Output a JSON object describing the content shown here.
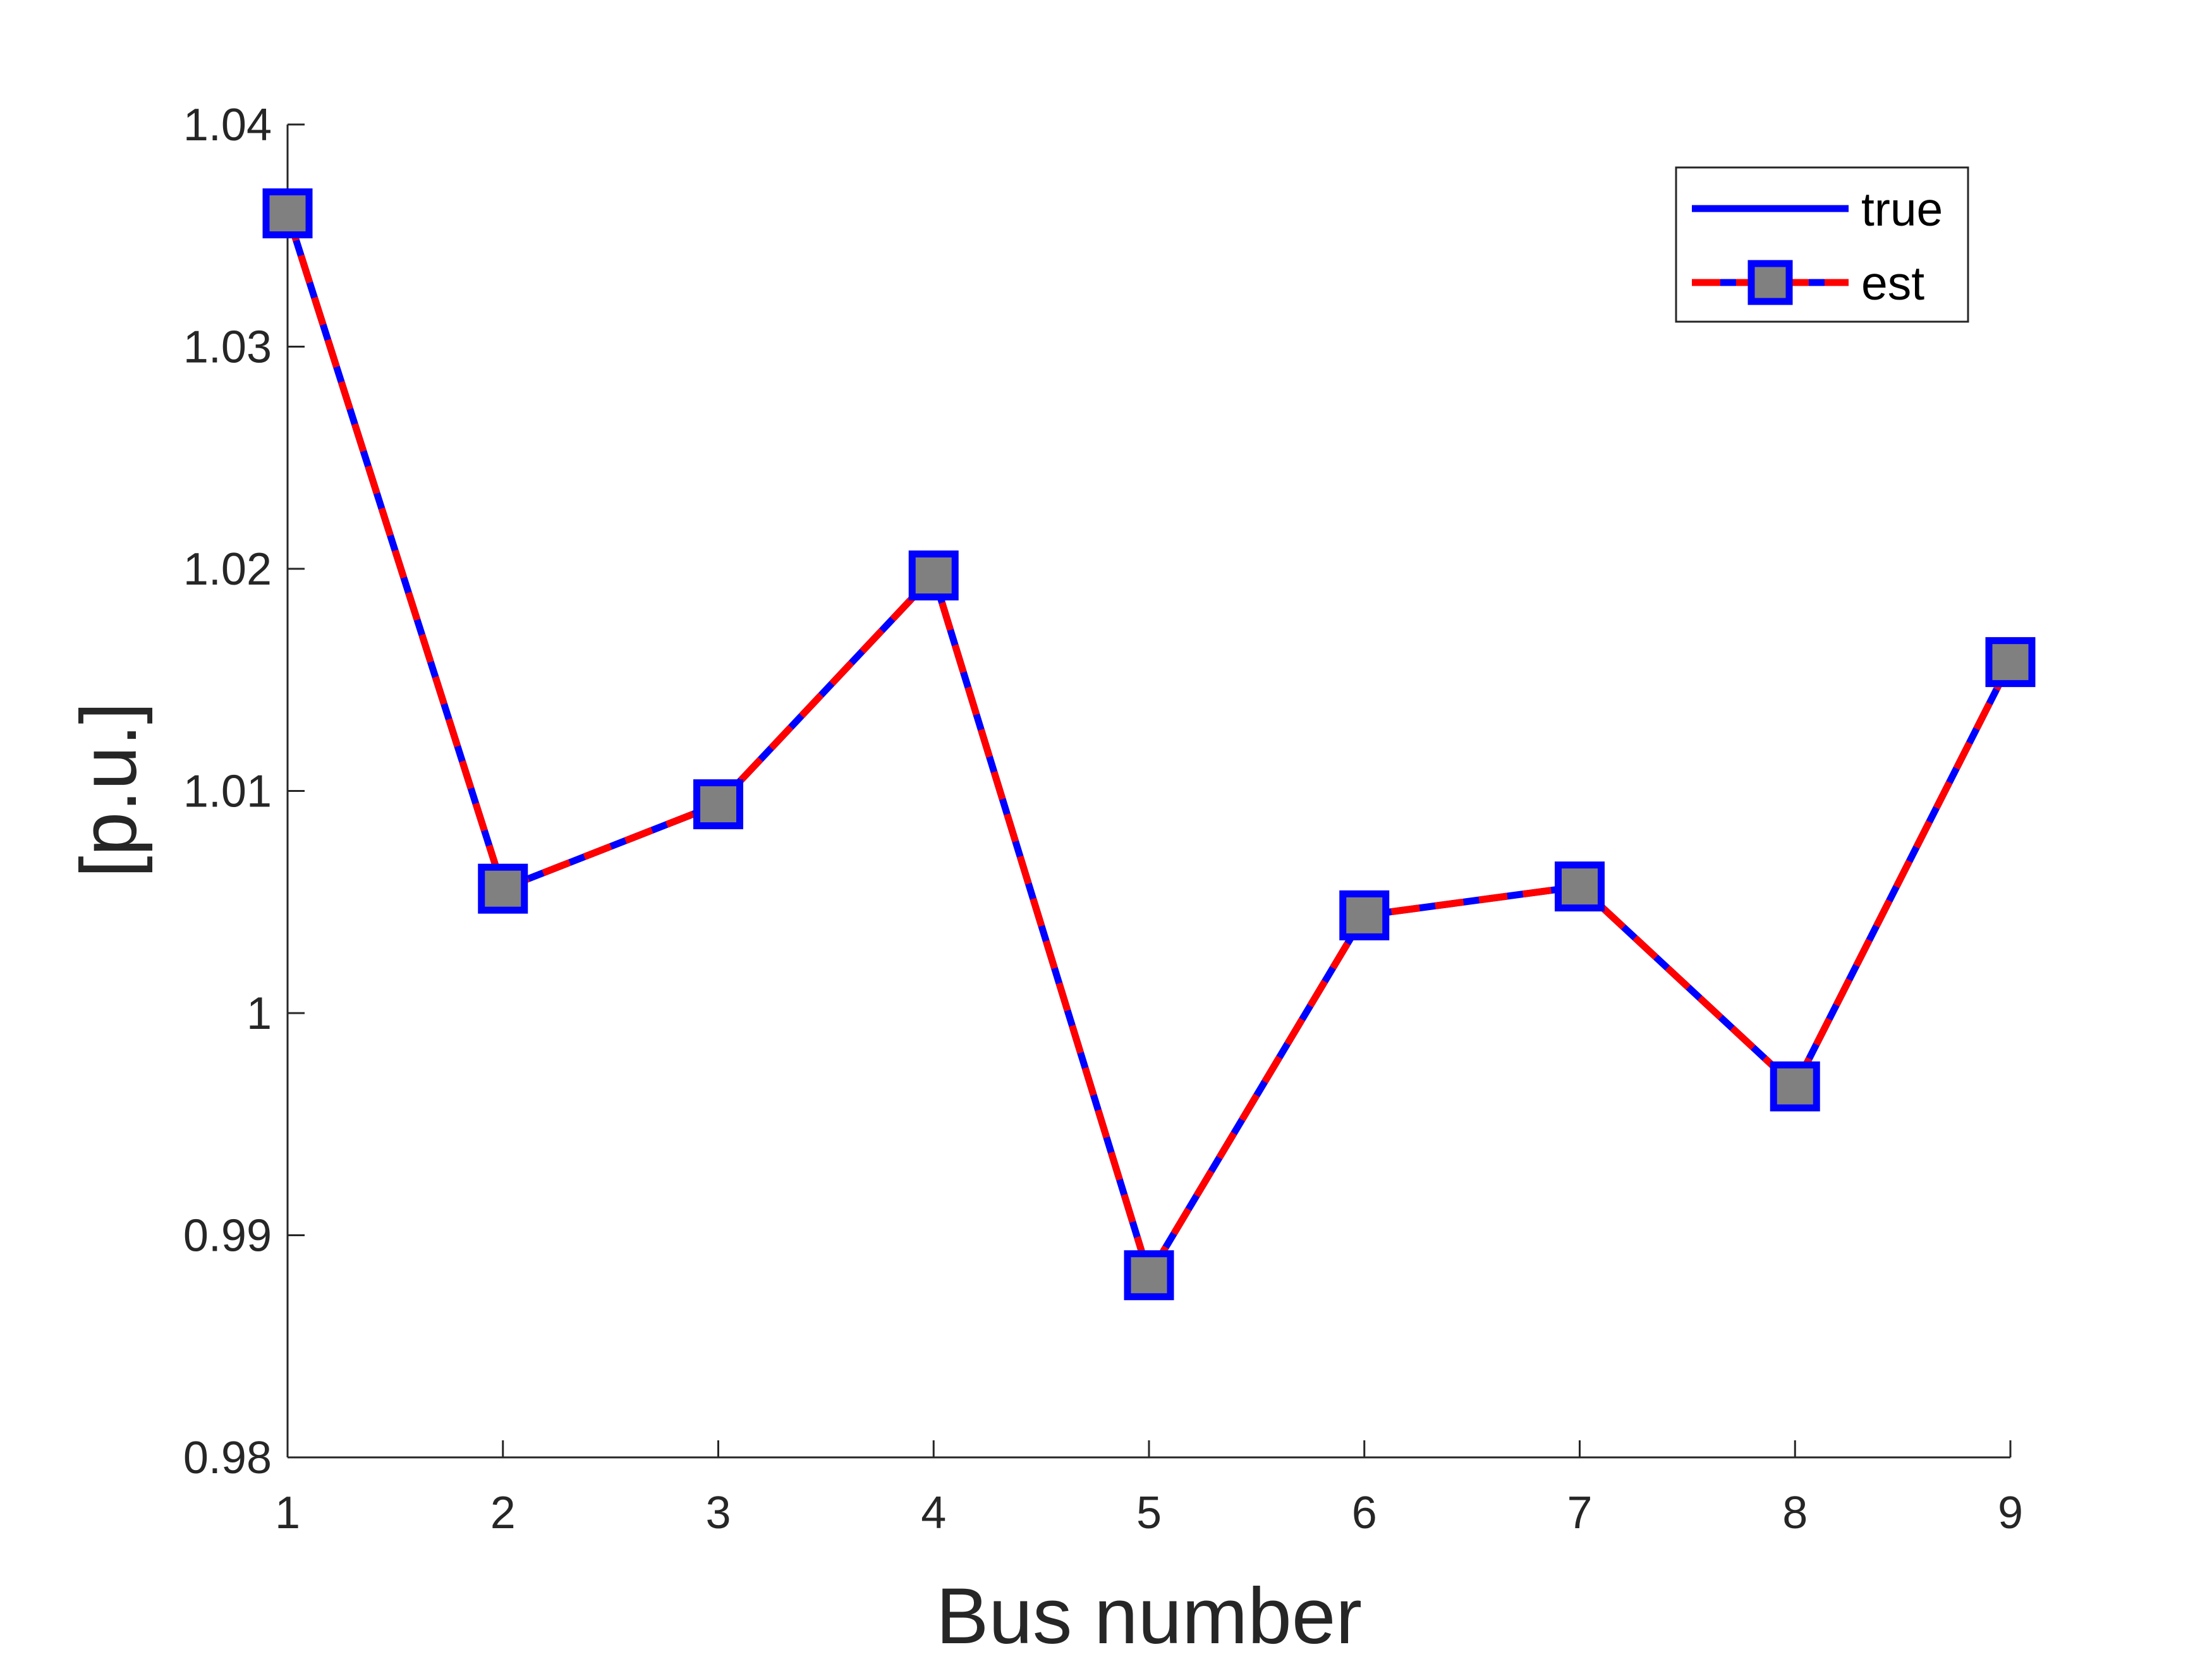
{
  "chart_data": {
    "type": "line",
    "xlabel": "Bus number",
    "ylabel": "[p.u.]",
    "xlim": [
      1,
      9
    ],
    "ylim": [
      0.98,
      1.04
    ],
    "x": [
      1,
      2,
      3,
      4,
      5,
      6,
      7,
      8,
      9
    ],
    "xticks": [
      "1",
      "2",
      "3",
      "4",
      "5",
      "6",
      "7",
      "8",
      "9"
    ],
    "yticks": [
      "0.98",
      "0.99",
      "1",
      "1.01",
      "1.02",
      "1.03",
      "1.04"
    ],
    "ytick_values": [
      0.98,
      0.99,
      1.0,
      1.01,
      1.02,
      1.03,
      1.04
    ],
    "grid": false,
    "legend_position": "top-right",
    "series": [
      {
        "name": "true",
        "color": "#0000ff",
        "style": "solid",
        "values": [
          1.036,
          1.0056,
          1.0094,
          1.0197,
          0.9882,
          1.0044,
          1.0057,
          0.9967,
          1.0158
        ]
      },
      {
        "name": "est",
        "color": "#ff0000",
        "style": "dashed",
        "marker": "square",
        "marker_edge": "#0000ff",
        "marker_fill": "#808080",
        "values": [
          1.036,
          1.0056,
          1.0094,
          1.0197,
          0.9882,
          1.0044,
          1.0057,
          0.9967,
          1.0158
        ]
      }
    ]
  }
}
